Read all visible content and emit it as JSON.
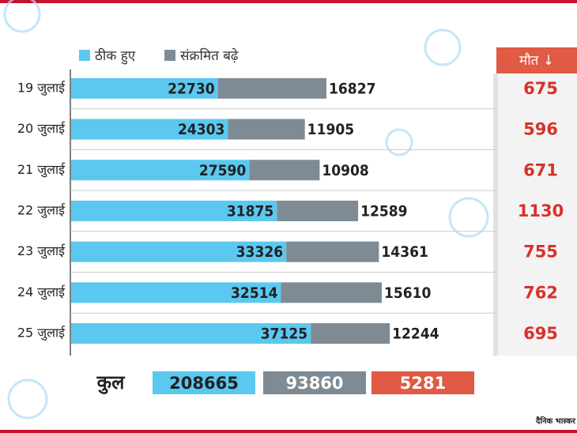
{
  "chart_data": {
    "type": "bar",
    "orientation": "horizontal",
    "stacked": true,
    "categories": [
      "19 जुलाई",
      "20 जुलाई",
      "21 जुलाई",
      "22 जुलाई",
      "23 जुलाई",
      "24 जुलाई",
      "25 जुलाई"
    ],
    "series": [
      {
        "name": "ठीक हुए",
        "color": "#5bc8f0",
        "values": [
          22730,
          24303,
          27590,
          31875,
          33326,
          32514,
          37125
        ]
      },
      {
        "name": "संक्रमित बढ़े",
        "color": "#7f8b94",
        "values": [
          16827,
          11905,
          10908,
          12589,
          14361,
          15610,
          12244
        ]
      }
    ],
    "deaths": {
      "title": "मौत ↓",
      "color": "#e05a44",
      "values": [
        675,
        596,
        671,
        1130,
        755,
        762,
        695
      ]
    },
    "totals": {
      "label": "कुल",
      "values": [
        208665,
        93860,
        5281
      ]
    },
    "logo": "दैनिक भास्कर"
  }
}
